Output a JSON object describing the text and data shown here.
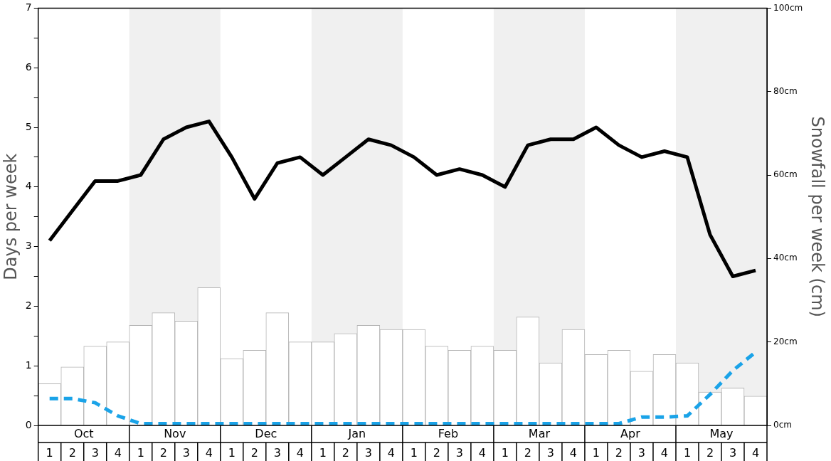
{
  "chart_data": {
    "type": "bar",
    "ylabel": "Days per week",
    "y2label": "Snowfall per week (cm)",
    "categories": [
      "1",
      "2",
      "3",
      "4",
      "1",
      "2",
      "3",
      "4",
      "1",
      "2",
      "3",
      "4",
      "1",
      "2",
      "3",
      "4",
      "1",
      "2",
      "3",
      "4",
      "1",
      "2",
      "3",
      "4",
      "1",
      "2",
      "3",
      "4",
      "1",
      "2",
      "3",
      "4"
    ],
    "annotations": [
      "Oct",
      "Nov",
      "Dec",
      "Jan",
      "Feb",
      "Mar",
      "Apr",
      "May"
    ],
    "series": [
      {
        "axis": "y2",
        "color": "#ffffff",
        "values": [
          10,
          14,
          19,
          20,
          24,
          27,
          25,
          33,
          16,
          18,
          27,
          20,
          20,
          22,
          24,
          23,
          23,
          19,
          18,
          19,
          18,
          26,
          15,
          23,
          17,
          18,
          13,
          17,
          15,
          8,
          9,
          7
        ]
      },
      {
        "type": "line",
        "color": "#000000",
        "values": [
          3.1,
          3.6,
          4.1,
          4.1,
          4.2,
          4.8,
          5.0,
          5.1,
          4.5,
          3.8,
          4.4,
          4.5,
          4.2,
          4.5,
          4.8,
          4.7,
          4.5,
          4.2,
          4.3,
          4.2,
          4.0,
          4.7,
          4.8,
          4.8,
          5.0,
          4.7,
          4.5,
          4.6,
          4.5,
          3.2,
          2.5,
          2.6
        ]
      },
      {
        "type": "line",
        "color": "#1aa3e8",
        "line_style": "dashed",
        "values": [
          0.45,
          0.45,
          0.38,
          0.16,
          0.03,
          0.03,
          0.03,
          0.03,
          0.03,
          0.03,
          0.03,
          0.03,
          0.03,
          0.03,
          0.03,
          0.03,
          0.03,
          0.03,
          0.03,
          0.03,
          0.03,
          0.03,
          0.03,
          0.03,
          0.03,
          0.03,
          0.14,
          0.14,
          0.16,
          0.52,
          0.92,
          1.23
        ]
      }
    ],
    "ylim": [
      0,
      7
    ],
    "yticks": [
      0,
      {
        "value": 0.5,
        "label": null
      },
      1,
      {
        "value": 1.5,
        "label": null
      },
      2,
      {
        "value": 2.5,
        "label": null
      },
      3,
      {
        "value": 3.5,
        "label": null
      },
      4,
      {
        "value": 4.5,
        "label": null
      },
      5,
      {
        "value": 5.5,
        "label": null
      },
      6,
      {
        "value": 6.5,
        "label": null
      },
      7
    ],
    "y2lim": [
      0,
      100
    ],
    "y2ticks": [
      {
        "value": 0,
        "label": "0cm"
      },
      {
        "value": 20,
        "label": "20cm"
      },
      {
        "value": 40,
        "label": "40cm"
      },
      {
        "value": 60,
        "label": "60cm"
      },
      {
        "value": 80,
        "label": "80cm"
      },
      {
        "value": 100,
        "label": "100cm"
      }
    ],
    "grid": false,
    "legend": false,
    "marker": "none"
  }
}
